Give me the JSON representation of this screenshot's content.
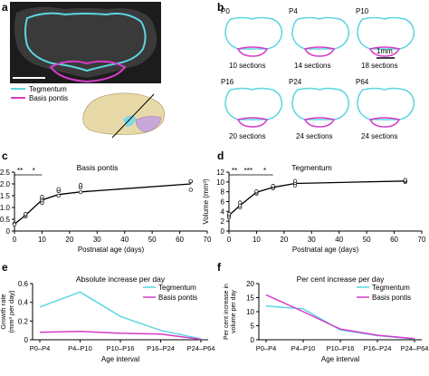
{
  "panel_letters": [
    "a",
    "b",
    "c",
    "d",
    "e",
    "f"
  ],
  "panel_a": {
    "legend": [
      {
        "label": "Tegmentum",
        "color": "#5cd6e0"
      },
      {
        "label": "Basis pontis",
        "color": "#d63cc8"
      }
    ]
  },
  "panel_b": {
    "scale_label": "1mm",
    "ages": [
      {
        "age": "P0",
        "sections": "10 sections"
      },
      {
        "age": "P4",
        "sections": "14 sections"
      },
      {
        "age": "P10",
        "sections": "18 sections"
      },
      {
        "age": "P16",
        "sections": "20 sections"
      },
      {
        "age": "P24",
        "sections": "24 sections"
      },
      {
        "age": "P64",
        "sections": "24 sections"
      }
    ]
  },
  "colors": {
    "tegmentum": "#5cd6e0",
    "basis": "#d63cc8",
    "axis": "#000000"
  },
  "chart_data": [
    {
      "id": "c",
      "type": "scatter",
      "title": "Basis pontis",
      "xlabel": "Postnatal age (days)",
      "ylabel": "Volume (mm³)",
      "xlim": [
        0,
        70
      ],
      "ylim": [
        0,
        2.5
      ],
      "xticks": [
        0,
        10,
        20,
        30,
        40,
        50,
        60,
        70
      ],
      "yticks": [
        0,
        0.5,
        1.0,
        1.5,
        2.0,
        2.5
      ],
      "ytick_labels": [
        "0",
        "0.5",
        "1.0",
        "1.5",
        "2.0",
        "2.5"
      ],
      "points": [
        [
          0,
          0.3
        ],
        [
          0,
          0.32
        ],
        [
          0,
          0.28
        ],
        [
          4,
          0.62
        ],
        [
          4,
          0.68
        ],
        [
          4,
          0.72
        ],
        [
          10,
          1.2
        ],
        [
          10,
          1.3
        ],
        [
          10,
          1.38
        ],
        [
          10,
          1.45
        ],
        [
          16,
          1.5
        ],
        [
          16,
          1.7
        ],
        [
          16,
          1.78
        ],
        [
          24,
          1.65
        ],
        [
          24,
          1.85
        ],
        [
          24,
          1.95
        ],
        [
          64,
          1.75
        ],
        [
          64,
          2.1
        ],
        [
          64,
          2.12
        ]
      ],
      "curve": {
        "x": [
          0,
          4,
          10,
          16,
          24,
          64
        ],
        "y": [
          0.3,
          0.67,
          1.32,
          1.55,
          1.66,
          2.0
        ]
      },
      "sig_brackets": [
        {
          "x1": 0,
          "x2": 4,
          "label": "**"
        },
        {
          "x1": 4,
          "x2": 10,
          "label": "*"
        }
      ]
    },
    {
      "id": "d",
      "type": "scatter",
      "title": "Tegmentum",
      "xlabel": "Postnatal age (days)",
      "ylabel": "Volume (mm³)",
      "xlim": [
        0,
        70
      ],
      "ylim": [
        0,
        12
      ],
      "xticks": [
        0,
        10,
        20,
        30,
        40,
        50,
        60,
        70
      ],
      "yticks": [
        0,
        2,
        4,
        6,
        8,
        10,
        12
      ],
      "ytick_labels": [
        "0",
        "2",
        "4",
        "6",
        "8",
        "10",
        "12"
      ],
      "points": [
        [
          0,
          2.8
        ],
        [
          0,
          3.2
        ],
        [
          0,
          3.5
        ],
        [
          4,
          4.8
        ],
        [
          4,
          5.2
        ],
        [
          4,
          5.8
        ],
        [
          10,
          7.6
        ],
        [
          10,
          7.9
        ],
        [
          10,
          8.1
        ],
        [
          16,
          8.7
        ],
        [
          16,
          9.0
        ],
        [
          16,
          9.2
        ],
        [
          24,
          9.3
        ],
        [
          24,
          9.8
        ],
        [
          24,
          10.2
        ],
        [
          64,
          10.0
        ],
        [
          64,
          10.2
        ],
        [
          64,
          10.4
        ]
      ],
      "curve": {
        "x": [
          0,
          4,
          10,
          16,
          24,
          64
        ],
        "y": [
          3.2,
          5.2,
          7.9,
          8.9,
          9.7,
          10.2
        ]
      },
      "sig_brackets": [
        {
          "x1": 0,
          "x2": 4,
          "label": "**"
        },
        {
          "x1": 4,
          "x2": 10,
          "label": "***"
        },
        {
          "x1": 10,
          "x2": 16,
          "label": "*"
        }
      ]
    },
    {
      "id": "e",
      "type": "line",
      "title": "Absolute increase per day",
      "xlabel": "Age interval",
      "ylabel": "Growth rate (mm³ per day)",
      "categories": [
        "P0–P4",
        "P4–P10",
        "P10–P16",
        "P16–P24",
        "P24–P64"
      ],
      "ylim": [
        0,
        0.6
      ],
      "yticks": [
        0,
        0.2,
        0.4,
        0.6
      ],
      "ytick_labels": [
        "0",
        "0.2",
        "0.4",
        "0.6"
      ],
      "legend_position": "top-right",
      "series": [
        {
          "name": "Tegmentum",
          "values": [
            0.35,
            0.51,
            0.25,
            0.1,
            0.01
          ]
        },
        {
          "name": "Basis pontis",
          "values": [
            0.08,
            0.09,
            0.07,
            0.06,
            0.005
          ]
        }
      ]
    },
    {
      "id": "f",
      "type": "line",
      "title": "Per cent increase per day",
      "xlabel": "Age interval",
      "ylabel": "Per cent increase in volume per day",
      "categories": [
        "P0–P4",
        "P4–P10",
        "P10–P16",
        "P16–P24",
        "P24–P64"
      ],
      "ylim": [
        0,
        20
      ],
      "yticks": [
        0,
        5,
        10,
        15,
        20
      ],
      "ytick_labels": [
        "0",
        "5",
        "10",
        "15",
        "20"
      ],
      "legend_position": "top-right",
      "series": [
        {
          "name": "Tegmentum",
          "values": [
            12,
            11,
            3.5,
            1.5,
            0.3
          ]
        },
        {
          "name": "Basis pontis",
          "values": [
            16,
            10,
            3.8,
            1.6,
            0.4
          ]
        }
      ]
    }
  ]
}
